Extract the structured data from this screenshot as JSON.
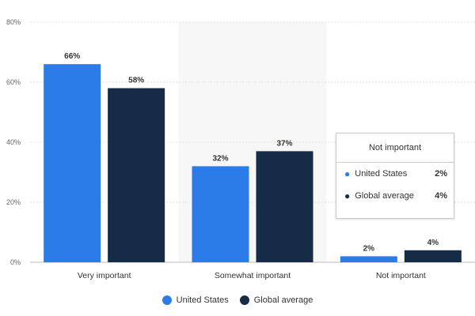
{
  "chart_data": {
    "type": "bar",
    "categories": [
      "Very important",
      "Somewhat important",
      "Not important"
    ],
    "series": [
      {
        "name": "United States",
        "values": [
          66,
          32,
          2
        ],
        "color": "#2b7ce9"
      },
      {
        "name": "Global average",
        "values": [
          58,
          37,
          4
        ],
        "color": "#162b45"
      }
    ],
    "ylim": [
      0,
      80
    ],
    "yticks": [
      0,
      20,
      40,
      60,
      80
    ],
    "ytick_labels": [
      "0%",
      "20%",
      "40%",
      "60%",
      "80%"
    ],
    "data_labels": [
      [
        "66%",
        "32%",
        "2%"
      ],
      [
        "58%",
        "37%",
        "4%"
      ]
    ],
    "highlighted_category_index": 1,
    "grid": true,
    "legend_position": "bottom"
  },
  "tooltip": {
    "title": "Not important",
    "rows": [
      {
        "name": "United States",
        "value": "2%",
        "color": "#2b7ce9"
      },
      {
        "name": "Global average",
        "value": "4%",
        "color": "#162b45"
      }
    ]
  }
}
